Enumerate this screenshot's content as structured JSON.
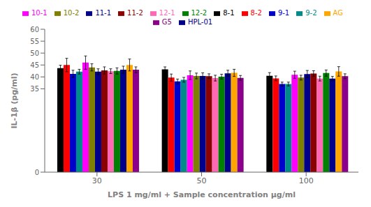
{
  "chart_data": {
    "type": "bar",
    "ylabel": "IL-1β (pg/ml)",
    "xlabel": "LPS 1 mg/ml + Sample concentration μg/ml",
    "categories": [
      "30",
      "50",
      "100"
    ],
    "series": [
      {
        "name": "8-1",
        "color": "#000000",
        "values": [
          43.7,
          43.2,
          40.5
        ],
        "errors": [
          1.2,
          1.0,
          1.3
        ]
      },
      {
        "name": "8-2",
        "color": "#ff0000",
        "values": [
          45.0,
          39.7,
          39.4
        ],
        "errors": [
          2.8,
          1.5,
          1.0
        ]
      },
      {
        "name": "9-1",
        "color": "#0000cd",
        "values": [
          41.3,
          38.1,
          37.0
        ],
        "errors": [
          1.5,
          1.0,
          0.8
        ]
      },
      {
        "name": "9-2",
        "color": "#008b8b",
        "values": [
          42.2,
          38.8,
          37.0
        ],
        "errors": [
          1.0,
          1.0,
          0.8
        ]
      },
      {
        "name": "10-1",
        "color": "#ff00ff",
        "values": [
          46.0,
          40.7,
          40.9
        ],
        "errors": [
          2.8,
          1.8,
          1.5
        ]
      },
      {
        "name": "10-2",
        "color": "#808000",
        "values": [
          44.0,
          40.4,
          39.7
        ],
        "errors": [
          1.5,
          1.2,
          1.0
        ]
      },
      {
        "name": "11-1",
        "color": "#00008b",
        "values": [
          42.2,
          40.4,
          41.2
        ],
        "errors": [
          1.2,
          1.3,
          1.5
        ]
      },
      {
        "name": "11-2",
        "color": "#8b0000",
        "values": [
          42.7,
          40.3,
          41.4
        ],
        "errors": [
          1.5,
          1.0,
          1.2
        ]
      },
      {
        "name": "12-1",
        "color": "#ff69b4",
        "values": [
          42.4,
          39.5,
          39.3
        ],
        "errors": [
          1.0,
          1.2,
          1.0
        ]
      },
      {
        "name": "12-2",
        "color": "#008000",
        "values": [
          42.5,
          40.1,
          41.6
        ],
        "errors": [
          1.3,
          1.0,
          1.3
        ]
      },
      {
        "name": "HPL-01",
        "color": "#00008b",
        "values": [
          43.0,
          41.5,
          39.3
        ],
        "errors": [
          1.5,
          1.3,
          0.9
        ]
      },
      {
        "name": "AG",
        "color": "#ffa500",
        "values": [
          45.0,
          41.7,
          42.3
        ],
        "errors": [
          2.5,
          1.5,
          2.0
        ]
      },
      {
        "name": "G5",
        "color": "#8b008b",
        "values": [
          43.0,
          39.6,
          40.3
        ],
        "errors": [
          1.2,
          1.0,
          1.0
        ]
      }
    ],
    "ylim": [
      0,
      60
    ],
    "yticks": [
      0,
      35,
      40,
      45,
      50,
      55,
      60
    ],
    "grid": false,
    "legend": "top"
  }
}
